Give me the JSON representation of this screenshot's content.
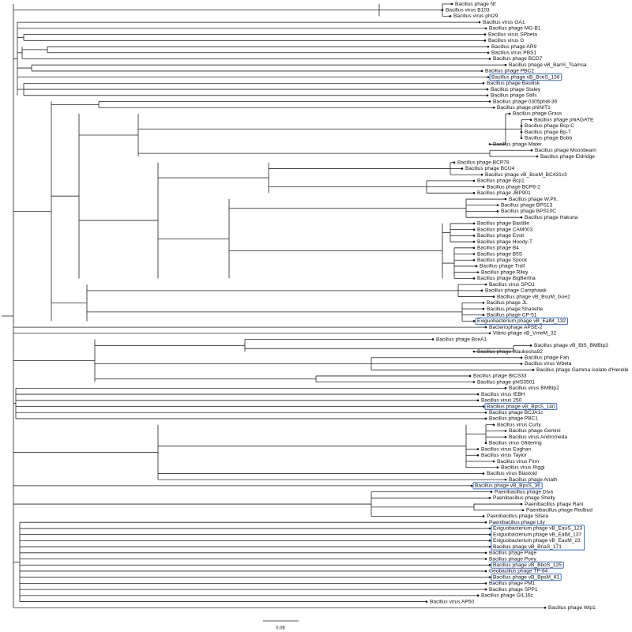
{
  "leaves": [
    {
      "label": "Bacillus phage Nf"
    },
    {
      "label": "Bacillus virus B103"
    },
    {
      "label": "Bacillus virus phi29"
    },
    {
      "label": "Bacillus virus GA1"
    },
    {
      "label": "Bacillus phage MG-B1"
    },
    {
      "label": "Bacillus virus SPbeta"
    },
    {
      "label": "Bacillus virus G"
    },
    {
      "label": "Bacillus phage AR9"
    },
    {
      "label": "Bacillus virus PBS1"
    },
    {
      "label": "Bacillus phage BCD7"
    },
    {
      "label": "Bacillus phage vB_BanS_Tsamsa"
    },
    {
      "label": "Bacillus phage PBC2"
    },
    {
      "label": "Bacillus phage vB_BceS_136",
      "highlighted": true
    },
    {
      "label": "Bacillus phage Basilisk"
    },
    {
      "label": "Bacillus phage Staley"
    },
    {
      "label": "Bacillus phage Stills"
    },
    {
      "label": "Bacillus phage 0305phi8-36"
    },
    {
      "label": "Bacillus phage phiNIT1"
    },
    {
      "label": "Bacillus phage Grass"
    },
    {
      "label": "Bacillus phage phiAGATE"
    },
    {
      "label": "Bacillus phage Bcp-C"
    },
    {
      "label": "Bacillus phage Bp-T"
    },
    {
      "label": "Bacillus phage Bobb"
    },
    {
      "label": "Bacillus phage Mater"
    },
    {
      "label": "Bacillus phage Moonbeam"
    },
    {
      "label": "Bacillus phage Eldridge"
    },
    {
      "label": "Bacillus phage BCP78"
    },
    {
      "label": "Bacillus phage BCU4"
    },
    {
      "label": "Bacillus phage vB_BceM_BC431v3"
    },
    {
      "label": "Bacillus phage Bcp1"
    },
    {
      "label": "Bacillus phage BCP8-2"
    },
    {
      "label": "Bacillus phage JBP901"
    },
    {
      "label": "Bacillus phage W.Ph."
    },
    {
      "label": "Bacillus phage BPS13"
    },
    {
      "label": "Bacillus phage BPS10C"
    },
    {
      "label": "Bacillus phage Hakuna"
    },
    {
      "label": "Bacillus phage Bastille"
    },
    {
      "label": "Bacillus phage CAM003"
    },
    {
      "label": "Bacillus phage Evoli"
    },
    {
      "label": "Bacillus phage Hoody-T"
    },
    {
      "label": "Bacillus phage B4"
    },
    {
      "label": "Bacillus phage B5S"
    },
    {
      "label": "Bacillus phage Spock"
    },
    {
      "label": "Bacillus phage Troll"
    },
    {
      "label": "Bacillus phage Riley"
    },
    {
      "label": "Bacillus phage BigBertha"
    },
    {
      "label": "Bacillus virus SPO1"
    },
    {
      "label": "Bacillus phage Camphawk"
    },
    {
      "label": "Bacillus phage vB_BsuM_Goe2"
    },
    {
      "label": "Bacillus phage JL"
    },
    {
      "label": "Bacillus phage Shanette"
    },
    {
      "label": "Bacillus phage CP-51"
    },
    {
      "label": "Exiguobacterium phage vB_EalM_132",
      "highlighted": true
    },
    {
      "label": "Bacteriophage APSE-2"
    },
    {
      "label": "Vibrio phage vB_VmeM_32"
    },
    {
      "label": "Bacillus phage BceA1"
    },
    {
      "label": "Bacillus phage vB_BtS_BMBtp3"
    },
    {
      "label": "Bacillus phage Waukesha92"
    },
    {
      "label": "Bacillus phage Fah"
    },
    {
      "label": "Bacillus virus Wbeta"
    },
    {
      "label": "Bacillus phage Gamma isolate d'Herelle"
    },
    {
      "label": "Bacillus phage BtCS33"
    },
    {
      "label": "Bacillus phage phIS3501"
    },
    {
      "label": "Bacillus virus BMBtp2"
    },
    {
      "label": "Bacillus virus IEBH"
    },
    {
      "label": "Bacillus virus 250"
    },
    {
      "label": "Bacillus phage vB_BpsS_140",
      "highlighted": true
    },
    {
      "label": "Bacillus phage BCJA1c"
    },
    {
      "label": "Bacillus phage PBC1"
    },
    {
      "label": "Bacillus virus Curly"
    },
    {
      "label": "Bacillus phage Gemini"
    },
    {
      "label": "Bacillus virus Andromeda"
    },
    {
      "label": "Bacillus virus Glittering"
    },
    {
      "label": "Bacillus virus Eoghan"
    },
    {
      "label": "Bacillus virus Taylor"
    },
    {
      "label": "Bacillus virus Finn"
    },
    {
      "label": "Bacillus virus Riggi"
    },
    {
      "label": "Bacillus virus Blastoid"
    },
    {
      "label": "Bacillus phage Anath"
    },
    {
      "label": "Bacillus phage vB_BpsS_36",
      "highlighted": true
    },
    {
      "label": "Paenibacillus phage Diva"
    },
    {
      "label": "Paenibacillus phage Shelly"
    },
    {
      "label": "Paenibacillus phage Rani"
    },
    {
      "label": "Paenibacillus phage Redbud"
    },
    {
      "label": "Paenibacillus phage Sitara"
    },
    {
      "label": "Paenibacillus phage Lily"
    },
    {
      "label": "Exiguobacterium phage vB_EauS_123",
      "highlighted": true
    },
    {
      "label": "Exiguobacterium phage vB_EalM_137",
      "highlighted": true
    },
    {
      "label": "Exiguobacterium phage vB_EauM_23",
      "highlighted": true
    },
    {
      "label": "Bacillus phage vB_BnaS_171",
      "highlighted": true
    },
    {
      "label": "Bacillus phage Page"
    },
    {
      "label": "Bacillus phage Pony"
    },
    {
      "label": "Bacillus phage vB_BboS_125",
      "highlighted": true
    },
    {
      "label": "Geobacillus phage TP-84"
    },
    {
      "label": "Bacillus phage vB_BpsM_61",
      "highlighted": true
    },
    {
      "label": "Bacillus phage PM1"
    },
    {
      "label": "Bacillus phage SPP1"
    },
    {
      "label": "Bacillus phage GIL16c"
    },
    {
      "label": "Bacillus virus AP50"
    },
    {
      "label": "Bacillus phage Wip1"
    }
  ],
  "scale_bar": {
    "label": "0.06"
  }
}
